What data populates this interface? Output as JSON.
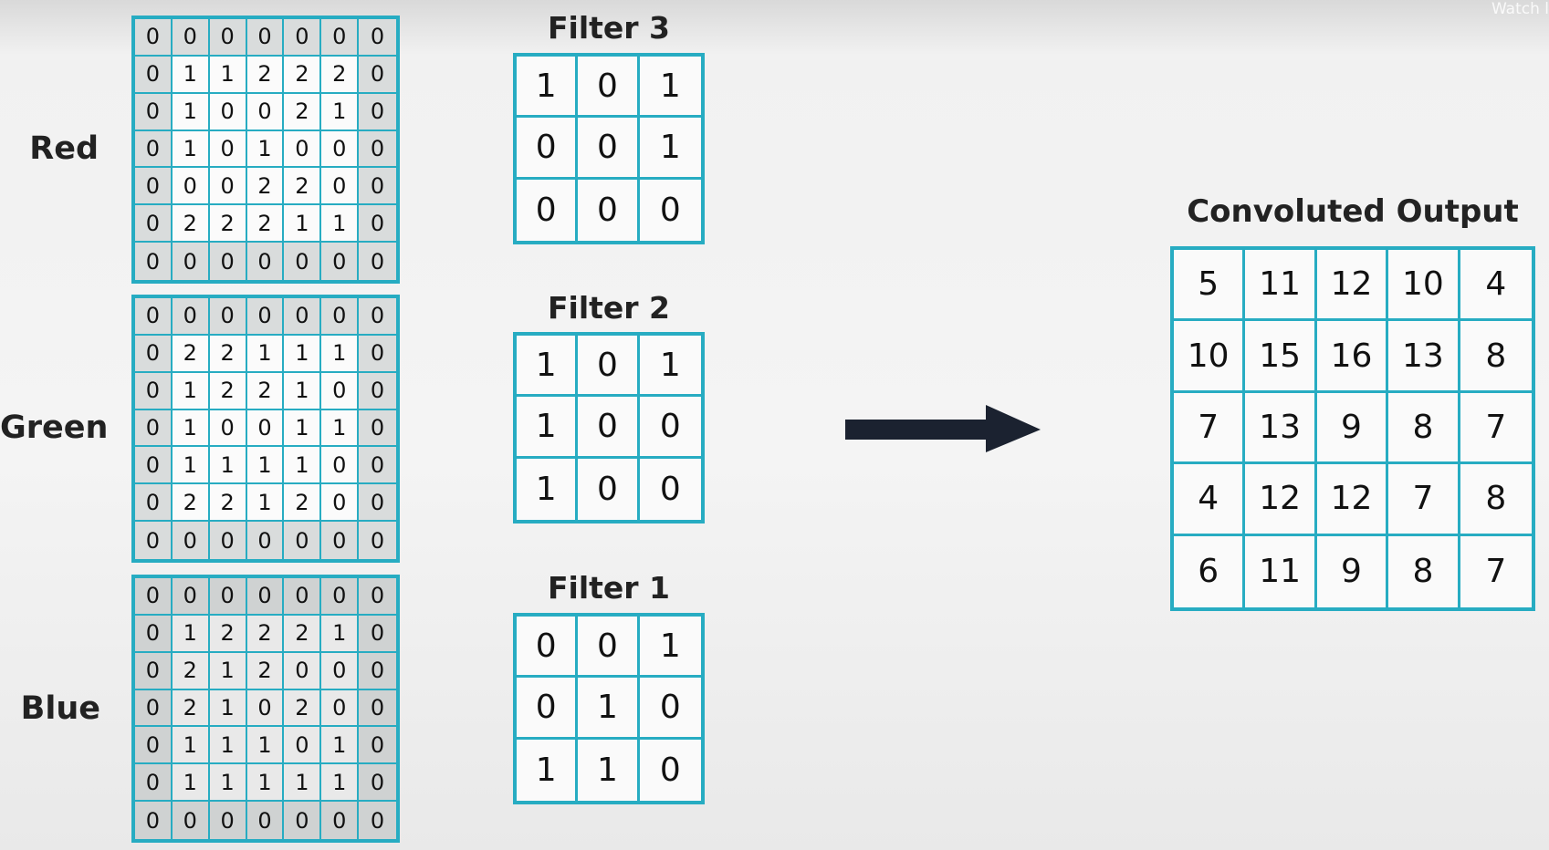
{
  "watermark": "Watch l",
  "channels": [
    {
      "label": "Red",
      "grid": [
        [
          "0",
          "0",
          "0",
          "0",
          "0",
          "0",
          "0"
        ],
        [
          "0",
          "1",
          "1",
          "2",
          "2",
          "2",
          "0"
        ],
        [
          "0",
          "1",
          "0",
          "0",
          "2",
          "1",
          "0"
        ],
        [
          "0",
          "1",
          "0",
          "1",
          "0",
          "0",
          "0"
        ],
        [
          "0",
          "0",
          "0",
          "2",
          "2",
          "0",
          "0"
        ],
        [
          "0",
          "2",
          "2",
          "2",
          "1",
          "1",
          "0"
        ],
        [
          "0",
          "0",
          "0",
          "0",
          "0",
          "0",
          "0"
        ]
      ]
    },
    {
      "label": "Green",
      "grid": [
        [
          "0",
          "0",
          "0",
          "0",
          "0",
          "0",
          "0"
        ],
        [
          "0",
          "2",
          "2",
          "1",
          "1",
          "1",
          "0"
        ],
        [
          "0",
          "1",
          "2",
          "2",
          "1",
          "0",
          "0"
        ],
        [
          "0",
          "1",
          "0",
          "0",
          "1",
          "1",
          "0"
        ],
        [
          "0",
          "1",
          "1",
          "1",
          "1",
          "0",
          "0"
        ],
        [
          "0",
          "2",
          "2",
          "1",
          "2",
          "0",
          "0"
        ],
        [
          "0",
          "0",
          "0",
          "0",
          "0",
          "0",
          "0"
        ]
      ]
    },
    {
      "label": "Blue",
      "grid": [
        [
          "0",
          "0",
          "0",
          "0",
          "0",
          "0",
          "0"
        ],
        [
          "0",
          "1",
          "2",
          "2",
          "2",
          "1",
          "0"
        ],
        [
          "0",
          "2",
          "1",
          "2",
          "0",
          "0",
          "0"
        ],
        [
          "0",
          "2",
          "1",
          "0",
          "2",
          "0",
          "0"
        ],
        [
          "0",
          "1",
          "1",
          "1",
          "0",
          "1",
          "0"
        ],
        [
          "0",
          "1",
          "1",
          "1",
          "1",
          "1",
          "0"
        ],
        [
          "0",
          "0",
          "0",
          "0",
          "0",
          "0",
          "0"
        ]
      ]
    }
  ],
  "filters": [
    {
      "title": "Filter 3",
      "grid": [
        [
          "1",
          "0",
          "1"
        ],
        [
          "0",
          "0",
          "1"
        ],
        [
          "0",
          "0",
          "0"
        ]
      ]
    },
    {
      "title": "Filter 2",
      "grid": [
        [
          "1",
          "0",
          "1"
        ],
        [
          "1",
          "0",
          "0"
        ],
        [
          "1",
          "0",
          "0"
        ]
      ]
    },
    {
      "title": "Filter 1",
      "grid": [
        [
          "0",
          "0",
          "1"
        ],
        [
          "0",
          "1",
          "0"
        ],
        [
          "1",
          "1",
          "0"
        ]
      ]
    }
  ],
  "output": {
    "title": "Convoluted Output",
    "grid": [
      [
        "5",
        "11",
        "12",
        "10",
        "4"
      ],
      [
        "10",
        "15",
        "16",
        "13",
        "8"
      ],
      [
        "7",
        "13",
        "9",
        "8",
        "7"
      ],
      [
        "4",
        "12",
        "12",
        "7",
        "8"
      ],
      [
        "6",
        "11",
        "9",
        "8",
        "7"
      ]
    ]
  },
  "colors": {
    "accent": "#27acc2",
    "arrow": "#1b2230",
    "text": "#1e1e24"
  }
}
